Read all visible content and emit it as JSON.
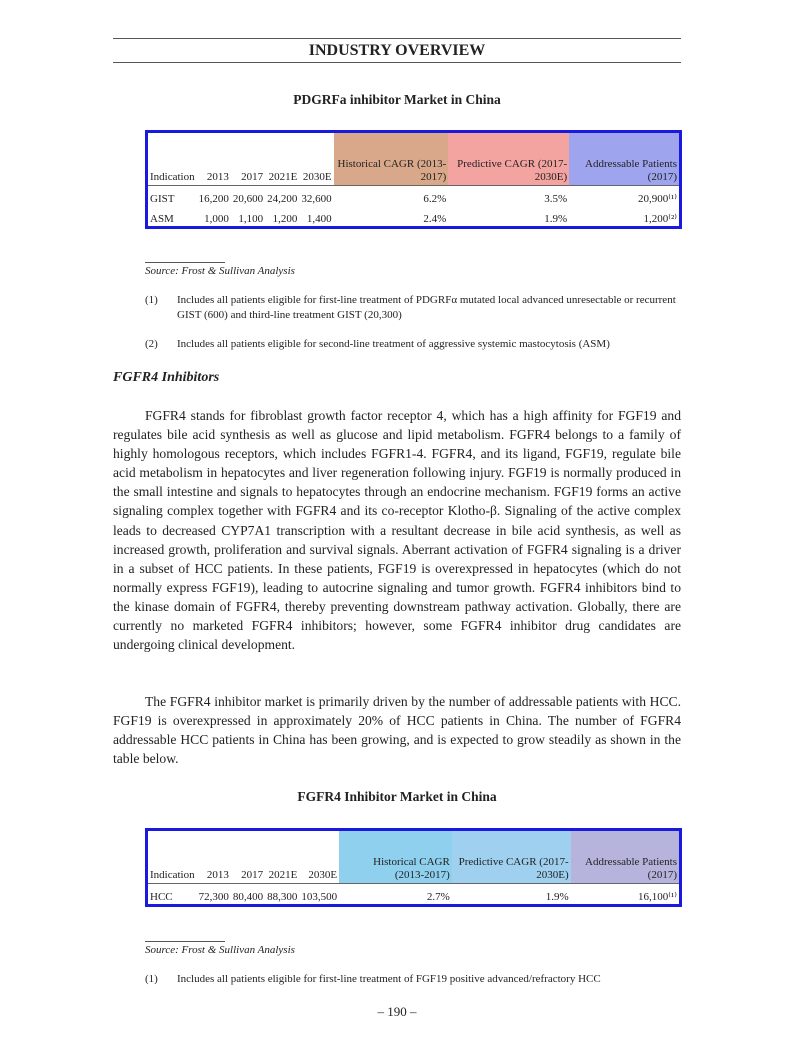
{
  "header": {
    "title": "INDUSTRY OVERVIEW"
  },
  "table1": {
    "title": "PDGRFa inhibitor Market in China",
    "columns": [
      "Indication",
      "2013",
      "2017",
      "2021E",
      "2030E",
      "Historical CAGR (2013-2017)",
      "Predictive CAGR (2017-2030E)",
      "Addressable Patients (2017)"
    ],
    "rows": [
      [
        "GIST",
        "16,200",
        "20,600",
        "24,200",
        "32,600",
        "6.2%",
        "3.5%",
        "20,900⁽¹⁾"
      ],
      [
        "ASM",
        "1,000",
        "1,100",
        "1,200",
        "1,400",
        "2.4%",
        "1.9%",
        "1,200⁽²⁾"
      ]
    ]
  },
  "source1": "Source: Frost & Sullivan Analysis",
  "notes1": [
    {
      "num": "(1)",
      "text": "Includes all patients eligible for first-line treatment of PDGRFα mutated local advanced unresectable or recurrent GIST (600) and third-line treatment GIST (20,300)"
    },
    {
      "num": "(2)",
      "text": "Includes all patients eligible for second-line treatment of aggressive systemic mastocytosis (ASM)"
    }
  ],
  "section": "FGFR4 Inhibitors",
  "paragraphs": [
    "FGFR4 stands for fibroblast growth factor receptor 4, which has a high affinity for FGF19 and regulates bile acid synthesis as well as glucose and lipid metabolism. FGFR4 belongs to a family of highly homologous receptors, which includes FGFR1-4. FGFR4, and its ligand, FGF19, regulate bile acid metabolism in hepatocytes and liver regeneration following injury. FGF19 is normally produced in the small intestine and signals to hepatocytes through an endocrine mechanism. FGF19 forms an active signaling complex together with FGFR4 and its co-receptor Klotho-β. Signaling of the active complex leads to decreased CYP7A1 transcription with a resultant decrease in bile acid synthesis, as well as increased growth, proliferation and survival signals. Aberrant activation of FGFR4 signaling is a driver in a subset of HCC patients. In these patients, FGF19 is overexpressed in hepatocytes (which do not normally express FGF19), leading to autocrine signaling and tumor growth. FGFR4 inhibitors bind to the kinase domain of FGFR4, thereby preventing downstream pathway activation. Globally, there are currently no marketed FGFR4 inhibitors; however, some FGFR4 inhibitor drug candidates are undergoing clinical development.",
    "The FGFR4 inhibitor market is primarily driven by the number of addressable patients with HCC. FGF19 is overexpressed in approximately 20% of HCC patients in China. The number of FGFR4 addressable HCC patients in China has been growing, and is expected to grow steadily as shown in the table below."
  ],
  "table2": {
    "title": "FGFR4 Inhibitor Market in China",
    "columns": [
      "Indication",
      "2013",
      "2017",
      "2021E",
      "2030E",
      "Historical CAGR (2013-2017)",
      "Predictive CAGR (2017-2030E)",
      "Addressable Patients (2017)"
    ],
    "rows": [
      [
        "HCC",
        "72,300",
        "80,400",
        "88,300",
        "103,500",
        "2.7%",
        "1.9%",
        "16,100⁽¹⁾"
      ]
    ]
  },
  "source2": "Source: Frost & Sullivan Analysis",
  "notes2": [
    {
      "num": "(1)",
      "text": "Includes all patients eligible for first-line treatment of FGF19 positive advanced/refractory HCC"
    }
  ],
  "page_number": "– 190 –"
}
